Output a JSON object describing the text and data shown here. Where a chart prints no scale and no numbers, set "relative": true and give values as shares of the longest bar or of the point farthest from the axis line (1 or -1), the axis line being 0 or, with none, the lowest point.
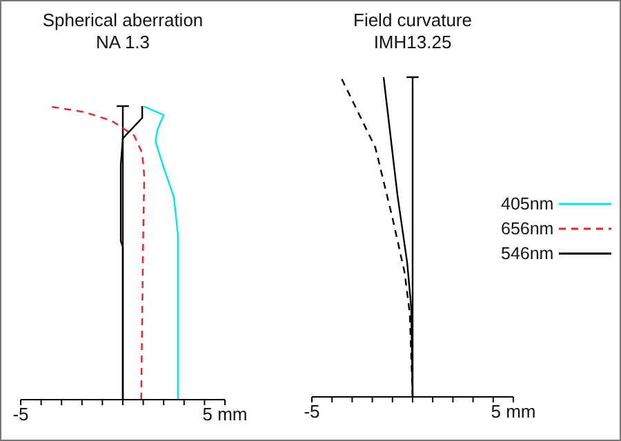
{
  "chart_data": [
    {
      "type": "line",
      "title": "Spherical aberration",
      "subtitle": "NA 1.3",
      "relative": true,
      "xlim": [
        -5,
        5
      ],
      "xticks": [
        {
          "value": -5,
          "label": "-5"
        },
        {
          "value": -4,
          "label": null
        },
        {
          "value": -3,
          "label": null
        },
        {
          "value": -2,
          "label": null
        },
        {
          "value": -1,
          "label": null
        },
        {
          "value": 0,
          "label": null
        },
        {
          "value": 1,
          "label": null
        },
        {
          "value": 2,
          "label": null
        },
        {
          "value": 3,
          "label": null
        },
        {
          "value": 4,
          "label": null
        },
        {
          "value": 5,
          "label": "5 mm"
        }
      ],
      "legend": "right",
      "marker": "none",
      "series": [
        {
          "name": "405nm",
          "color": "#00e5ee",
          "line_style": "solid",
          "x": [
            2.7,
            2.7,
            2.5,
            2.0,
            1.6,
            1.7,
            2.0,
            1.0
          ],
          "values": [
            0,
            0.56,
            0.69,
            0.79,
            0.88,
            0.92,
            0.97,
            1.0
          ]
        },
        {
          "name": "656nm",
          "color": "#ee2222",
          "line_style": "dashed",
          "x": [
            0.9,
            1.0,
            1.05,
            0.95,
            0.55,
            -0.55,
            -1.9,
            -3.7
          ],
          "values": [
            0,
            0.57,
            0.76,
            0.84,
            0.9,
            0.95,
            0.98,
            1.0
          ]
        },
        {
          "name": "546nm",
          "color": "#000000",
          "line_style": "solid",
          "x": [
            0,
            0,
            -0.1,
            -0.1,
            0,
            0.95,
            0.95
          ],
          "values": [
            0,
            0.52,
            0.54,
            0.8,
            0.89,
            0.96,
            1.0
          ]
        }
      ]
    },
    {
      "type": "line",
      "title": "Field curvature",
      "subtitle": "IMH13.25",
      "relative": true,
      "xlim": [
        -5,
        5
      ],
      "xticks": [
        {
          "value": -5,
          "label": "-5"
        },
        {
          "value": -4,
          "label": null
        },
        {
          "value": -3,
          "label": null
        },
        {
          "value": -2,
          "label": null
        },
        {
          "value": -1,
          "label": null
        },
        {
          "value": 0,
          "label": null
        },
        {
          "value": 1,
          "label": null
        },
        {
          "value": 2,
          "label": null
        },
        {
          "value": 3,
          "label": null
        },
        {
          "value": 4,
          "label": null
        },
        {
          "value": 5,
          "label": "5 mm"
        }
      ],
      "marker": "none",
      "series": [
        {
          "color": "#000000",
          "line_style": "solid",
          "x": [
            0,
            -0.07,
            -0.27,
            -0.75,
            -1.44
          ],
          "values": [
            0,
            0.28,
            0.42,
            0.63,
            1.0
          ]
        },
        {
          "color": "#000000",
          "line_style": "dashed",
          "x": [
            0,
            -0.14,
            -0.4,
            -1.0,
            -1.85,
            -3.56
          ],
          "values": [
            0,
            0.26,
            0.39,
            0.56,
            0.78,
            1.0
          ]
        }
      ]
    }
  ]
}
